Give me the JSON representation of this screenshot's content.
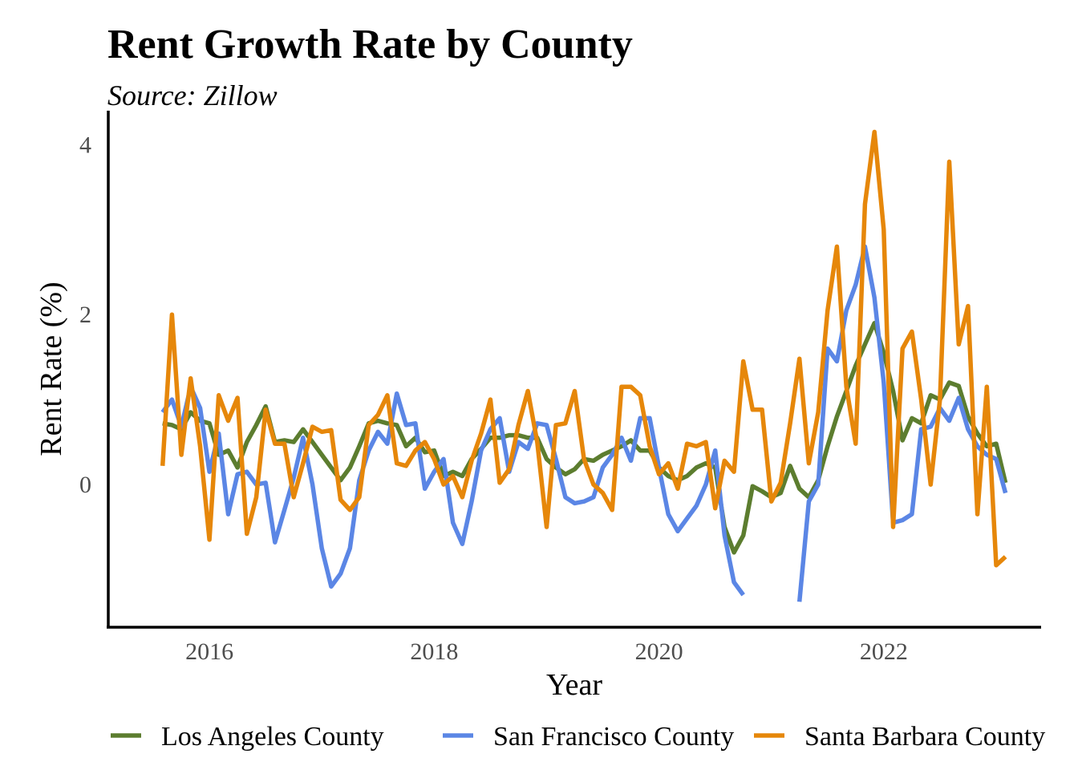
{
  "chart_data": {
    "type": "line",
    "title": "Rent Growth Rate by County",
    "subtitle": "Source: Zillow",
    "xlabel": "Year",
    "ylabel": "Rent Rate (%)",
    "x_ticks": [
      2016,
      2018,
      2020,
      2022
    ],
    "y_ticks": [
      0,
      2,
      4
    ],
    "xlim": [
      2015.1,
      2023.4
    ],
    "ylim": [
      -1.68,
      4.4
    ],
    "grid": false,
    "legend_position": "bottom",
    "series": [
      {
        "name": "Los Angeles County",
        "color": "#5c7d2f",
        "x": [
          2015.583,
          2015.667,
          2015.75,
          2015.833,
          2015.917,
          2016.0,
          2016.083,
          2016.167,
          2016.25,
          2016.333,
          2016.417,
          2016.5,
          2016.583,
          2016.667,
          2016.75,
          2016.833,
          2016.917,
          2017.0,
          2017.083,
          2017.167,
          2017.25,
          2017.333,
          2017.417,
          2017.5,
          2017.583,
          2017.667,
          2017.75,
          2017.833,
          2017.917,
          2018.0,
          2018.083,
          2018.167,
          2018.25,
          2018.333,
          2018.417,
          2018.5,
          2018.583,
          2018.667,
          2018.75,
          2018.833,
          2018.917,
          2019.0,
          2019.083,
          2019.167,
          2019.25,
          2019.333,
          2019.417,
          2019.5,
          2019.583,
          2019.667,
          2019.75,
          2019.833,
          2019.917,
          2020.0,
          2020.083,
          2020.167,
          2020.25,
          2020.333,
          2020.417,
          2020.5,
          2020.583,
          2020.667,
          2020.75,
          2020.833,
          2020.917,
          2021.0,
          2021.083,
          2021.167,
          2021.25,
          2021.333,
          2021.417,
          2021.5,
          2021.583,
          2021.667,
          2021.75,
          2021.833,
          2021.917,
          2022.0,
          2022.083,
          2022.167,
          2022.25,
          2022.333,
          2022.417,
          2022.5,
          2022.583,
          2022.667,
          2022.75,
          2022.833,
          2022.917,
          2023.0,
          2023.083
        ],
        "values": [
          0.72,
          0.7,
          0.65,
          0.85,
          0.75,
          0.72,
          0.35,
          0.4,
          0.2,
          0.5,
          0.7,
          0.92,
          0.5,
          0.52,
          0.5,
          0.65,
          0.5,
          0.35,
          0.2,
          0.05,
          0.2,
          0.45,
          0.72,
          0.75,
          0.72,
          0.7,
          0.45,
          0.55,
          0.38,
          0.4,
          0.1,
          0.15,
          0.1,
          0.3,
          0.42,
          0.55,
          0.55,
          0.58,
          0.58,
          0.55,
          0.55,
          0.3,
          0.2,
          0.12,
          0.18,
          0.3,
          0.28,
          0.35,
          0.4,
          0.45,
          0.52,
          0.4,
          0.4,
          0.2,
          0.1,
          0.05,
          0.1,
          0.2,
          0.25,
          0.2,
          -0.5,
          -0.8,
          -0.6,
          -0.02,
          -0.08,
          -0.15,
          -0.1,
          0.22,
          -0.05,
          -0.15,
          0.05,
          0.45,
          0.8,
          1.1,
          1.4,
          1.65,
          1.9,
          1.55,
          1.1,
          0.52,
          0.78,
          0.72,
          1.05,
          1.0,
          1.2,
          1.16,
          0.8,
          0.6,
          0.45,
          0.48,
          0.02
        ]
      },
      {
        "name": "San Francisco County",
        "color": "#5b86e5",
        "x": [
          2015.583,
          2015.667,
          2015.75,
          2015.833,
          2015.917,
          2016.0,
          2016.083,
          2016.167,
          2016.25,
          2016.333,
          2016.417,
          2016.5,
          2016.583,
          2016.667,
          2016.75,
          2016.833,
          2016.917,
          2017.0,
          2017.083,
          2017.167,
          2017.25,
          2017.333,
          2017.417,
          2017.5,
          2017.583,
          2017.667,
          2017.75,
          2017.833,
          2017.917,
          2018.0,
          2018.083,
          2018.167,
          2018.25,
          2018.333,
          2018.417,
          2018.5,
          2018.583,
          2018.667,
          2018.75,
          2018.833,
          2018.917,
          2019.0,
          2019.083,
          2019.167,
          2019.25,
          2019.333,
          2019.417,
          2019.5,
          2019.583,
          2019.667,
          2019.75,
          2019.833,
          2019.917,
          2020.0,
          2020.083,
          2020.167,
          2020.25,
          2020.333,
          2020.417,
          2020.5,
          2020.583,
          2020.667,
          2020.75,
          2020.833,
          2020.917,
          2021.0,
          2021.083,
          2021.167,
          2021.25,
          2021.333,
          2021.417,
          2021.5,
          2021.583,
          2021.667,
          2021.75,
          2021.833,
          2021.917,
          2022.0,
          2022.083,
          2022.167,
          2022.25,
          2022.333,
          2022.417,
          2022.5,
          2022.583,
          2022.667,
          2022.75,
          2022.833,
          2022.917,
          2023.0,
          2023.083
        ],
        "values": [
          0.85,
          1.0,
          0.68,
          1.15,
          0.9,
          0.15,
          0.6,
          -0.35,
          0.12,
          0.15,
          0.0,
          0.02,
          -0.68,
          -0.3,
          0.08,
          0.55,
          0.0,
          -0.75,
          -1.2,
          -1.05,
          -0.75,
          0.05,
          0.4,
          0.62,
          0.48,
          1.07,
          0.7,
          0.72,
          -0.05,
          0.15,
          0.3,
          -0.45,
          -0.7,
          -0.2,
          0.4,
          0.65,
          0.78,
          0.15,
          0.5,
          0.42,
          0.72,
          0.7,
          0.3,
          -0.15,
          -0.22,
          -0.2,
          -0.15,
          0.2,
          0.35,
          0.55,
          0.28,
          0.78,
          0.78,
          0.2,
          -0.35,
          -0.55,
          -0.4,
          -0.25,
          0.0,
          0.4,
          -0.6,
          -1.15,
          -1.3,
          null,
          null,
          null,
          null,
          null,
          -1.38,
          -0.2,
          0.0,
          1.6,
          1.45,
          2.05,
          2.35,
          2.8,
          2.2,
          1.2,
          -0.45,
          -0.42,
          -0.35,
          0.65,
          0.68,
          0.9,
          0.75,
          1.02,
          0.65,
          0.45,
          0.35,
          0.3,
          -0.1
        ]
      },
      {
        "name": "Santa Barbara County",
        "color": "#e6870a",
        "x": [
          2015.583,
          2015.667,
          2015.75,
          2015.833,
          2015.917,
          2016.0,
          2016.083,
          2016.167,
          2016.25,
          2016.333,
          2016.417,
          2016.5,
          2016.583,
          2016.667,
          2016.75,
          2016.833,
          2016.917,
          2017.0,
          2017.083,
          2017.167,
          2017.25,
          2017.333,
          2017.417,
          2017.5,
          2017.583,
          2017.667,
          2017.75,
          2017.833,
          2017.917,
          2018.0,
          2018.083,
          2018.167,
          2018.25,
          2018.333,
          2018.417,
          2018.5,
          2018.583,
          2018.667,
          2018.75,
          2018.833,
          2018.917,
          2019.0,
          2019.083,
          2019.167,
          2019.25,
          2019.333,
          2019.417,
          2019.5,
          2019.583,
          2019.667,
          2019.75,
          2019.833,
          2019.917,
          2020.0,
          2020.083,
          2020.167,
          2020.25,
          2020.333,
          2020.417,
          2020.5,
          2020.583,
          2020.667,
          2020.75,
          2020.833,
          2020.917,
          2021.0,
          2021.083,
          2021.167,
          2021.25,
          2021.333,
          2021.417,
          2021.5,
          2021.583,
          2021.667,
          2021.75,
          2021.833,
          2021.917,
          2022.0,
          2022.083,
          2022.167,
          2022.25,
          2022.333,
          2022.417,
          2022.5,
          2022.583,
          2022.667,
          2022.75,
          2022.833,
          2022.917,
          2023.0,
          2023.083
        ],
        "values": [
          0.22,
          2.0,
          0.35,
          1.25,
          0.45,
          -0.65,
          1.05,
          0.75,
          1.02,
          -0.58,
          -0.15,
          0.88,
          0.48,
          0.48,
          -0.15,
          0.25,
          0.68,
          0.62,
          0.64,
          -0.18,
          -0.3,
          -0.15,
          0.7,
          0.82,
          1.05,
          0.25,
          0.22,
          0.4,
          0.5,
          0.3,
          0.0,
          0.1,
          -0.15,
          0.28,
          0.6,
          1.0,
          0.02,
          0.18,
          0.7,
          1.1,
          0.5,
          -0.5,
          0.7,
          0.72,
          1.1,
          0.3,
          0.0,
          -0.1,
          -0.3,
          1.15,
          1.15,
          1.05,
          0.45,
          0.12,
          0.25,
          -0.05,
          0.48,
          0.45,
          0.5,
          -0.28,
          0.28,
          0.15,
          1.45,
          0.88,
          0.88,
          -0.2,
          0.02,
          0.72,
          1.48,
          0.25,
          0.85,
          2.05,
          2.8,
          1.15,
          0.48,
          3.3,
          4.15,
          3.0,
          -0.5,
          1.6,
          1.8,
          1.0,
          0.0,
          1.0,
          3.8,
          1.65,
          2.1,
          -0.35,
          1.15,
          -0.95,
          -0.85
        ]
      }
    ]
  }
}
